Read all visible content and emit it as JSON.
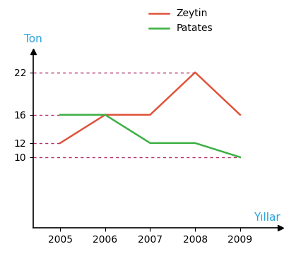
{
  "chart_data": {
    "type": "line",
    "x_label": "Yıllar",
    "y_label": "Ton",
    "x": [
      2005,
      2006,
      2007,
      2008,
      2009
    ],
    "series": [
      {
        "name": "Zeytin",
        "color": "#e0533a",
        "values": [
          12,
          16,
          16,
          22,
          16
        ]
      },
      {
        "name": "Patates",
        "color": "#3cb043",
        "values": [
          16,
          16,
          12,
          12,
          10
        ]
      }
    ],
    "xlim": [
      2004.4,
      2009.9
    ],
    "xticks": [
      2005,
      2006,
      2007,
      2008,
      2009
    ],
    "ylim": [
      0,
      25
    ],
    "yticks": [
      10,
      12,
      16,
      22
    ],
    "legend": "upper center"
  }
}
